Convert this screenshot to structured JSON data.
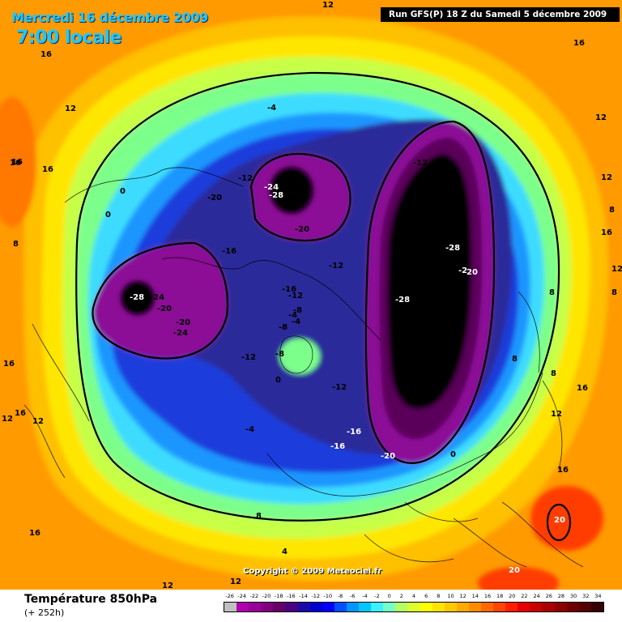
{
  "header": {
    "date": "Mercredi 16 décembre 2009",
    "time": "7:00 locale",
    "run": "Run GFS(P) 18 Z du Samedi 5 décembre 2009"
  },
  "footer": {
    "field": "Température 850hPa",
    "lead": "(+ 252h)",
    "copyright": "Copyright © 2009 Meteociel.fr"
  },
  "scale": {
    "values": [
      "-26",
      "-24",
      "-22",
      "-20",
      "-18",
      "-16",
      "-14",
      "-12",
      "-10",
      "-8",
      "-6",
      "-4",
      "-2",
      "0",
      "2",
      "4",
      "6",
      "8",
      "10",
      "12",
      "14",
      "16",
      "18",
      "20",
      "22",
      "24",
      "26",
      "28",
      "30",
      "32",
      "34"
    ],
    "colors": [
      "#c0c0c0",
      "#b000b0",
      "#9a009a",
      "#800080",
      "#660066",
      "#4b0082",
      "#1a0aa8",
      "#0000cc",
      "#0000ff",
      "#0050ff",
      "#0096ff",
      "#00c8ff",
      "#3cf0ff",
      "#78ffc8",
      "#b4ff64",
      "#dcff32",
      "#ffff00",
      "#ffe400",
      "#ffc800",
      "#ffaa00",
      "#ff8c00",
      "#ff6a00",
      "#ff4600",
      "#ff1e00",
      "#e60000",
      "#c80000",
      "#aa0000",
      "#8c0000",
      "#700000",
      "#540000",
      "#380000"
    ]
  },
  "map": {
    "contour_labels": [
      "12",
      "16",
      "16",
      "12",
      "16",
      "16",
      "12",
      "-4",
      "-12",
      "-24",
      "-28",
      "-20",
      "-12",
      "-24",
      "0",
      "0",
      "8",
      "-20",
      "-16",
      "-28",
      "-24",
      "-20",
      "-20",
      "-24",
      "-16",
      "-12",
      "-8",
      "-4",
      "-4",
      "-8",
      "-12",
      "-8",
      "0",
      "-12",
      "-28",
      "-2",
      "20",
      "12",
      "-28",
      "-16",
      "-16",
      "-20",
      "-12",
      "-4",
      "0",
      "4",
      "8",
      "12",
      "16",
      "12",
      "16",
      "20",
      "20",
      "8",
      "8",
      "12",
      "16",
      "12",
      "8",
      "8",
      "16",
      "12",
      "16",
      "12",
      "16",
      "12",
      "8",
      "16"
    ]
  }
}
